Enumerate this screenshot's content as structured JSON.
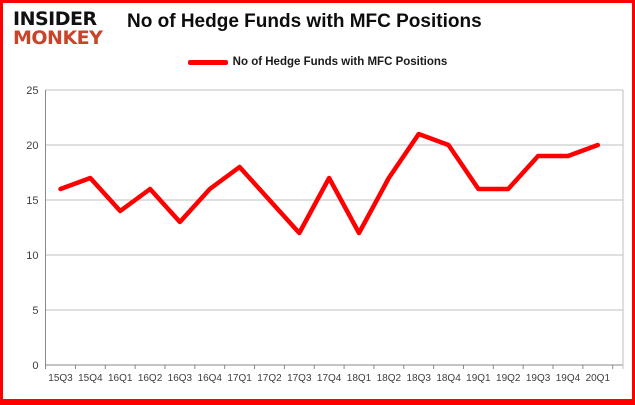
{
  "header": {
    "logo_line1": "INSIDER",
    "logo_line2": "MONKEY",
    "title": "No of Hedge Funds with MFC Positions"
  },
  "legend": {
    "label": "No of Hedge Funds with MFC Positions"
  },
  "chart_data": {
    "type": "line",
    "title": "No of Hedge Funds with MFC Positions",
    "categories": [
      "15Q3",
      "15Q4",
      "16Q1",
      "16Q2",
      "16Q3",
      "16Q4",
      "17Q1",
      "17Q2",
      "17Q3",
      "17Q4",
      "18Q1",
      "18Q2",
      "18Q3",
      "18Q4",
      "19Q1",
      "19Q2",
      "19Q3",
      "19Q4",
      "20Q1"
    ],
    "series": [
      {
        "name": "No of Hedge Funds with MFC Positions",
        "values": [
          16,
          17,
          14,
          16,
          13,
          16,
          18,
          15,
          12,
          17,
          12,
          17,
          21,
          20,
          16,
          16,
          19,
          19,
          20
        ]
      }
    ],
    "xlabel": "",
    "ylabel": "",
    "ylim": [
      0,
      25
    ],
    "yticks": [
      0,
      5,
      10,
      15,
      20,
      25
    ],
    "grid": "horizontal-only",
    "legend_position": "top-center"
  },
  "colors": {
    "line": "#fe0000",
    "border": "#fe0000",
    "logo_monkey": "#c9452a",
    "logo_insider": "#111111",
    "gridline": "#bfbfbf",
    "axis": "#898989",
    "tick_label": "#3f3f3f",
    "background": "#ffffff"
  }
}
